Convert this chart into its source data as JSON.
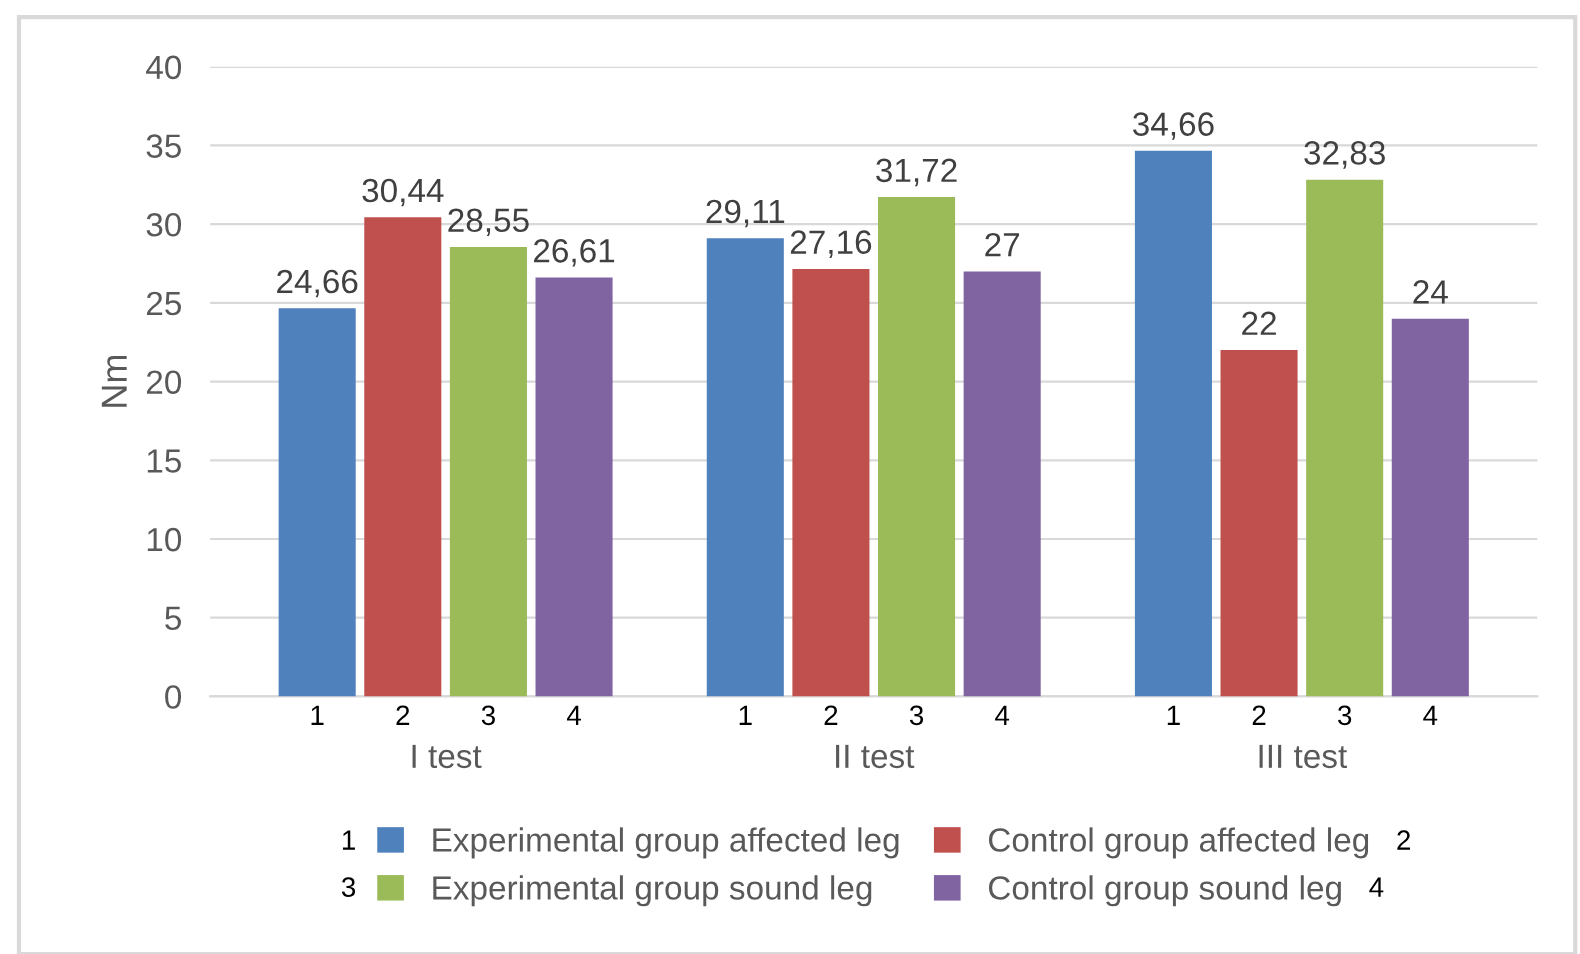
{
  "chart_data": {
    "type": "bar",
    "ylabel": "Nm",
    "categories": [
      "I test",
      "II test",
      "III test"
    ],
    "series": [
      {
        "name": "Experimental group affected leg",
        "color": "#4f81bd",
        "values": [
          24.66,
          29.11,
          34.66
        ],
        "value_labels": [
          "24,66",
          "29,11",
          "34,66"
        ]
      },
      {
        "name": "Control group affected leg",
        "color": "#c0504d",
        "values": [
          30.44,
          27.16,
          22
        ],
        "value_labels": [
          "30,44",
          "27,16",
          "22"
        ]
      },
      {
        "name": "Experimental group sound leg",
        "color": "#9bbb59",
        "values": [
          28.55,
          31.72,
          32.83
        ],
        "value_labels": [
          "28,55",
          "31,72",
          "32,83"
        ]
      },
      {
        "name": "Control group sound leg",
        "color": "#8064a2",
        "values": [
          26.61,
          27,
          24
        ],
        "value_labels": [
          "26,61",
          "27",
          "24"
        ]
      }
    ],
    "ylim": [
      0,
      40
    ],
    "yticks": [
      0,
      5,
      10,
      15,
      20,
      25,
      30,
      35,
      40
    ],
    "grid": "y",
    "legend": "bottom",
    "annotations": [
      "1",
      "2",
      "3",
      "4",
      "1",
      "2",
      "3",
      "4",
      "1",
      "2",
      "3",
      "4",
      "1",
      "2",
      "3",
      "4"
    ]
  }
}
